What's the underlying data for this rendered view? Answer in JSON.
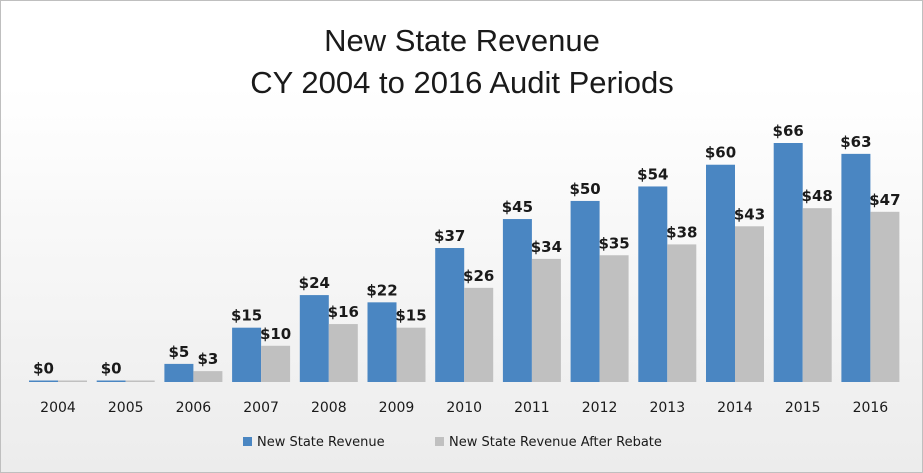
{
  "chart_data": {
    "type": "bar",
    "title": [
      "New State Revenue",
      "CY 2004 to 2016 Audit Periods"
    ],
    "xlabel": "",
    "ylabel": "",
    "categories": [
      "2004",
      "2005",
      "2006",
      "2007",
      "2008",
      "2009",
      "2010",
      "2011",
      "2012",
      "2013",
      "2014",
      "2015",
      "2016"
    ],
    "series": [
      {
        "name": "New State Revenue",
        "color": "#4a86c2",
        "values": [
          0,
          0,
          5,
          15,
          24,
          22,
          37,
          45,
          50,
          54,
          60,
          66,
          63
        ],
        "labels": [
          "$0",
          "$0",
          "$5",
          "$15",
          "$24",
          "$22",
          "$37",
          "$45",
          "$50",
          "$54",
          "$60",
          "$66",
          "$63"
        ]
      },
      {
        "name": "New State Revenue After Rebate",
        "color": "#c0c0c0",
        "values": [
          0,
          0,
          3,
          10,
          16,
          15,
          26,
          34,
          35,
          38,
          43,
          48,
          47
        ],
        "labels": [
          "",
          "",
          "$3",
          "$10",
          "$16",
          "$15",
          "$26",
          "$34",
          "$35",
          "$38",
          "$43",
          "$48",
          "$47"
        ]
      }
    ],
    "ylim": [
      0,
      66
    ],
    "grid": false,
    "legend": "bottom"
  }
}
